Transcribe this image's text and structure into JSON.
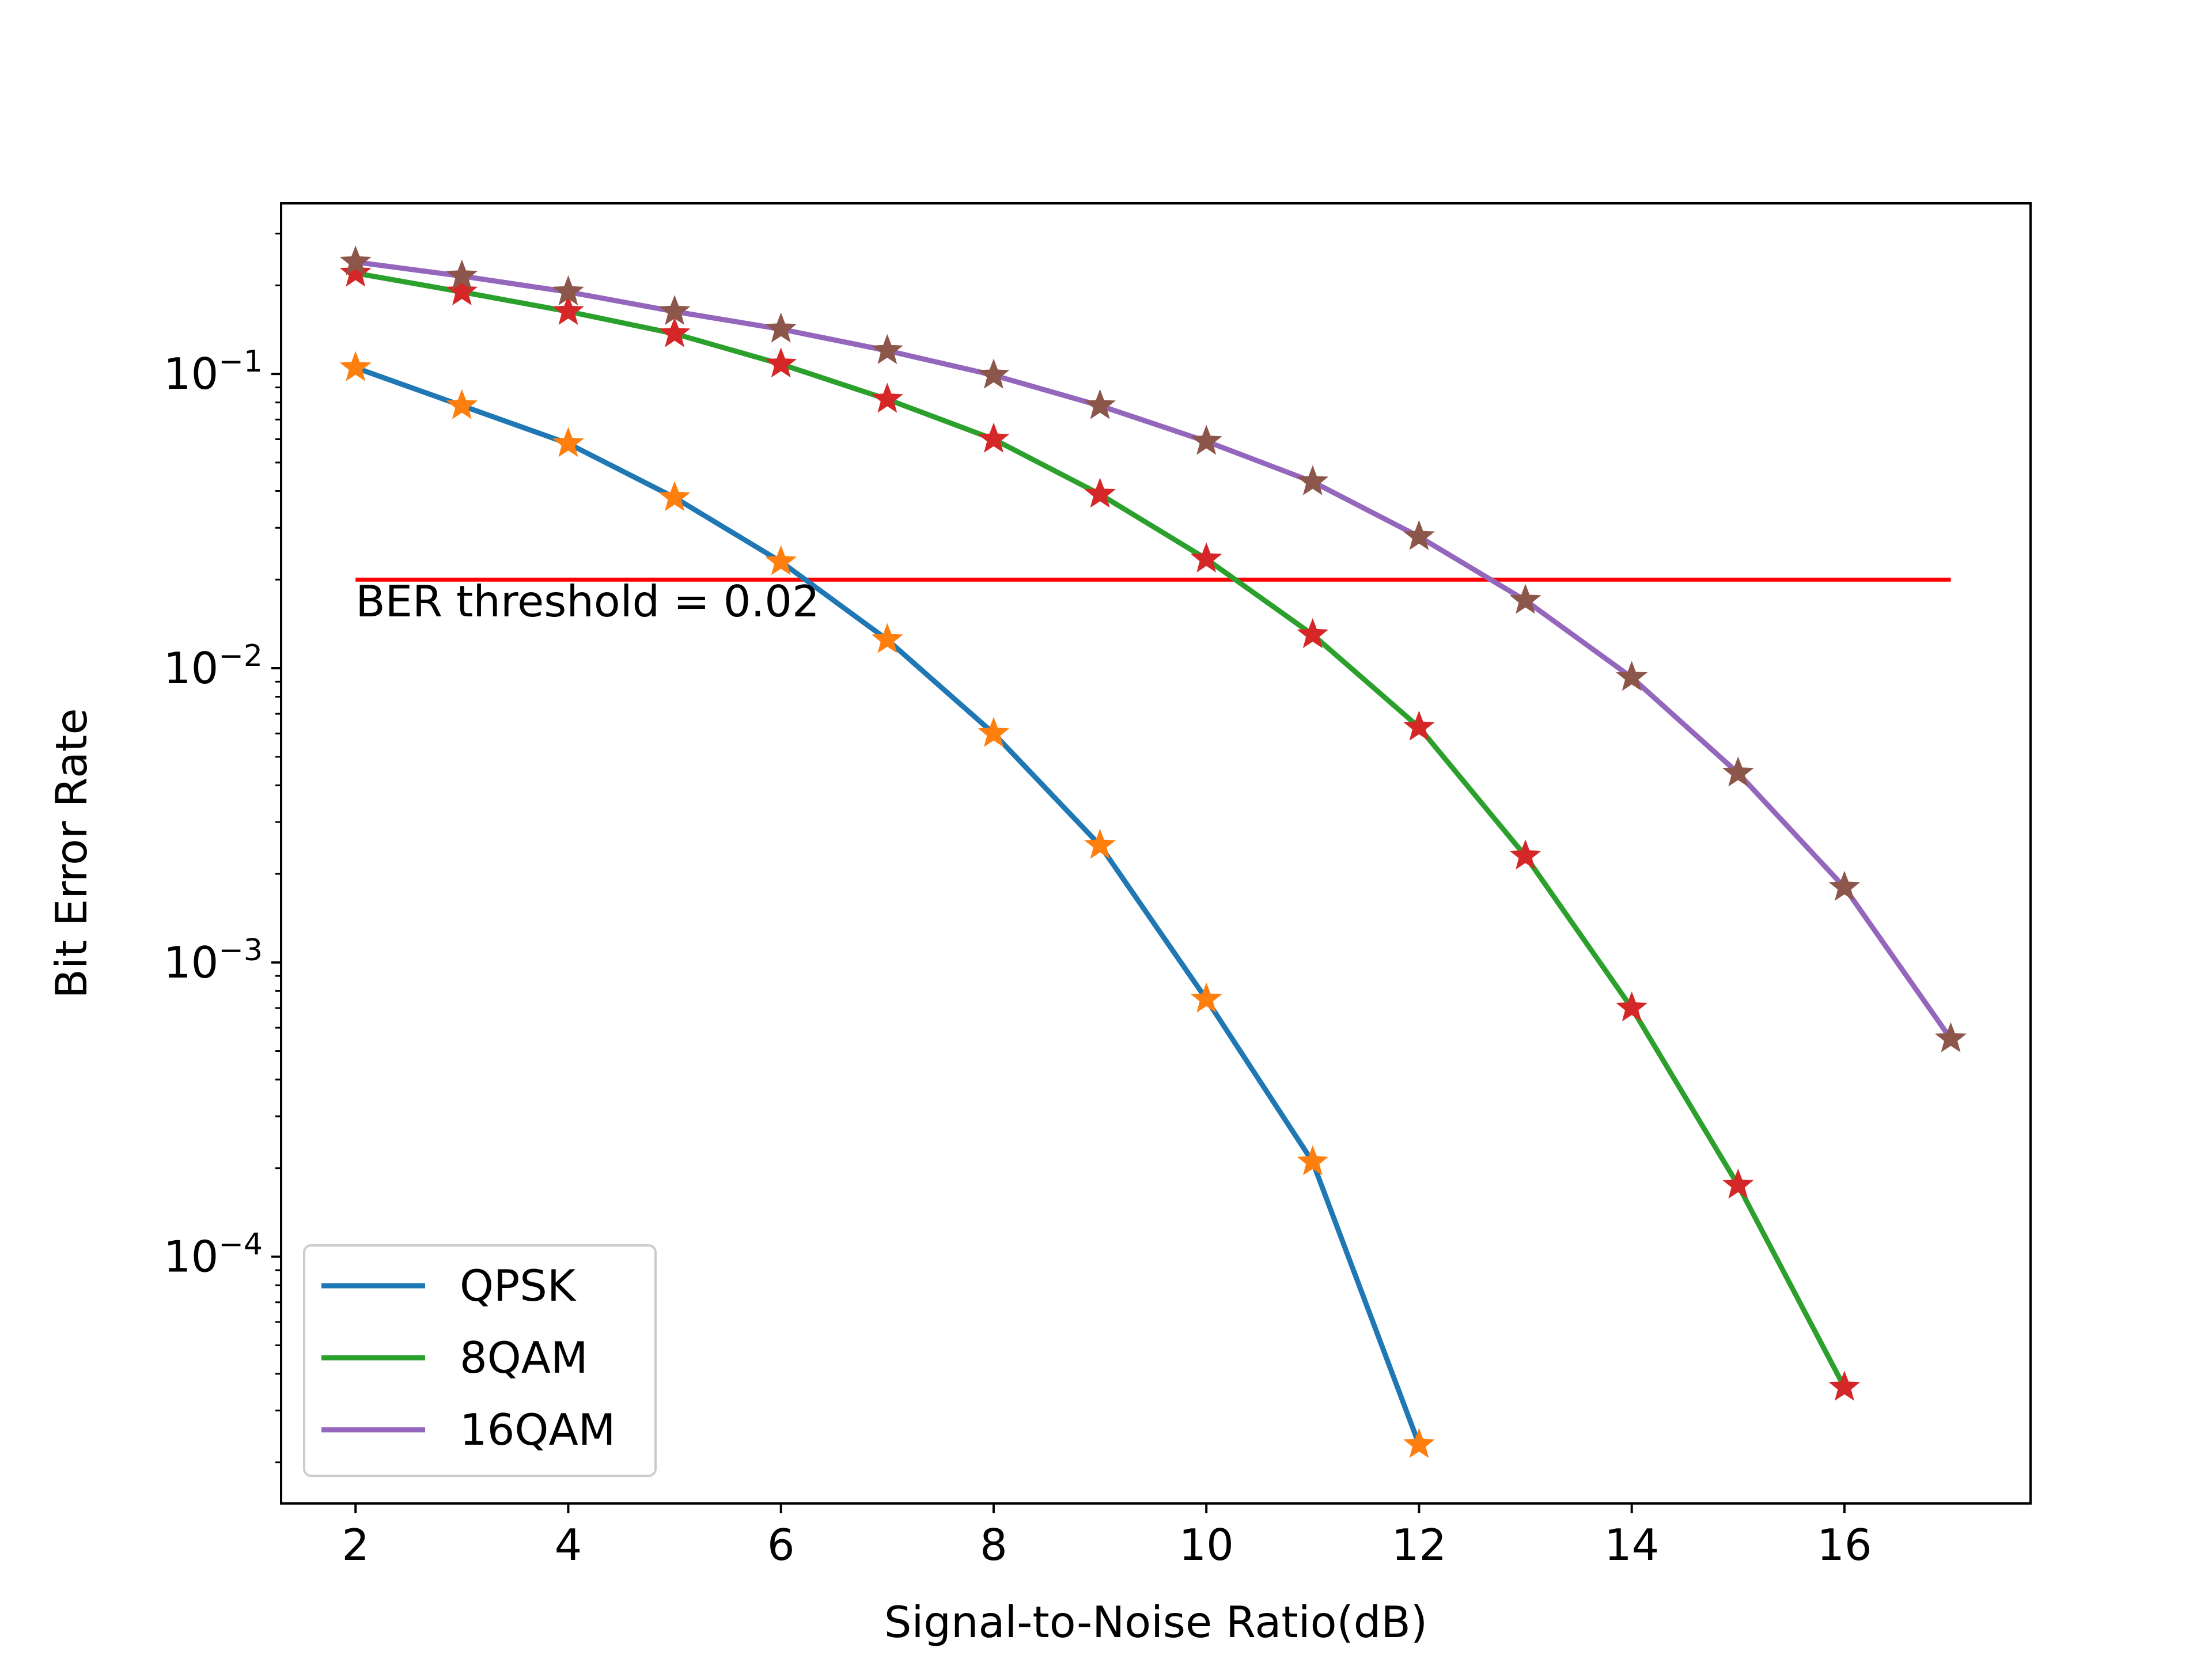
{
  "chart_data": {
    "type": "line",
    "title": "",
    "xlabel": "Signal-to-Noise Ratio(dB)",
    "ylabel": "Bit Error Rate",
    "xlim": [
      1.3,
      17.75
    ],
    "ylim": [
      1.45e-05,
      0.38
    ],
    "yscale": "log",
    "grid": false,
    "x_ticks": [
      2,
      4,
      6,
      8,
      10,
      12,
      14,
      16
    ],
    "y_ticks": [
      {
        "value": 0.1,
        "base": "10",
        "exp": "−1"
      },
      {
        "value": 0.01,
        "base": "10",
        "exp": "−2"
      },
      {
        "value": 0.001,
        "base": "10",
        "exp": "−3"
      },
      {
        "value": 0.0001,
        "base": "10",
        "exp": "−4"
      }
    ],
    "legend": {
      "position": "lower left"
    },
    "series": [
      {
        "name": "QPSK",
        "color": "#1f77b4",
        "marker": "star",
        "marker_color": "#ff7f0e",
        "x": [
          2,
          3,
          4,
          5,
          6,
          7,
          8,
          9,
          10,
          11,
          12
        ],
        "y": [
          0.105,
          0.078,
          0.058,
          0.038,
          0.023,
          0.0125,
          0.006,
          0.0025,
          0.00075,
          0.00021,
          2.3e-05
        ]
      },
      {
        "name": "8QAM",
        "color": "#2ca02c",
        "marker": "star",
        "marker_color": "#d62728",
        "x": [
          2,
          3,
          4,
          5,
          6,
          7,
          8,
          9,
          10,
          11,
          12,
          13,
          14,
          15,
          16
        ],
        "y": [
          0.22,
          0.19,
          0.163,
          0.137,
          0.108,
          0.082,
          0.06,
          0.039,
          0.0235,
          0.013,
          0.0063,
          0.0023,
          0.0007,
          0.000175,
          3.6e-05
        ]
      },
      {
        "name": "16QAM",
        "color": "#9467bd",
        "marker": "star",
        "marker_color": "#8c564b",
        "x": [
          2,
          3,
          4,
          5,
          6,
          7,
          8,
          9,
          10,
          11,
          12,
          13,
          14,
          15,
          16,
          17
        ],
        "y": [
          0.24,
          0.215,
          0.19,
          0.163,
          0.142,
          0.12,
          0.099,
          0.078,
          0.059,
          0.043,
          0.028,
          0.017,
          0.0093,
          0.0044,
          0.0018,
          0.00055
        ]
      }
    ],
    "threshold": {
      "value": 0.02,
      "x_start": 2,
      "x_end": 17,
      "color": "#ff0000",
      "label": "BER threshold = 0.02"
    }
  }
}
